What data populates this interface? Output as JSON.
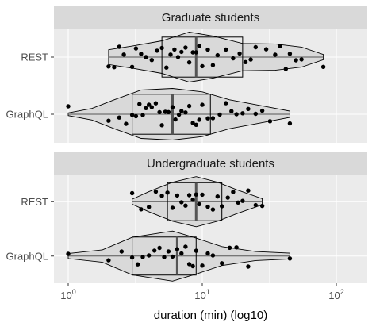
{
  "chart_data": {
    "type": "violin",
    "x_scale": "log10",
    "xlim": [
      1,
      100
    ],
    "xlabel": "duration (min) (log10)",
    "x_ticks": [
      1,
      10,
      100
    ],
    "x_tick_labels": [
      [
        "10",
        "0"
      ],
      [
        "10",
        "1"
      ],
      [
        "10",
        "2"
      ]
    ],
    "categories": [
      "REST",
      "GraphQL"
    ],
    "panels": [
      {
        "title": "Graduate students",
        "groups": [
          {
            "category": "REST",
            "box": {
              "q1": 5.0,
              "median": 9.0,
              "q3": 20.0
            },
            "whisker": [
              2.0,
              80.0
            ],
            "points": [
              2.0,
              2.2,
              2.4,
              2.6,
              3.0,
              3.2,
              3.5,
              3.8,
              4.2,
              4.6,
              5.0,
              5.4,
              5.8,
              6.2,
              6.6,
              7.0,
              7.5,
              8.0,
              8.5,
              9.0,
              9.5,
              10.0,
              11.0,
              12.0,
              13.0,
              15.0,
              17.0,
              19.0,
              21.0,
              23.0,
              25.0,
              30.0,
              35.0,
              38.0,
              42.0,
              45.0,
              50.0,
              55.0,
              80.0
            ],
            "density": [
              [
                2.0,
                0.28
              ],
              [
                3.0,
                0.42
              ],
              [
                5.0,
                0.62
              ],
              [
                8.0,
                0.95
              ],
              [
                12.0,
                0.8
              ],
              [
                20.0,
                0.52
              ],
              [
                35.0,
                0.5
              ],
              [
                55.0,
                0.38
              ],
              [
                80.0,
                0.1
              ]
            ]
          },
          {
            "category": "GraphQL",
            "box": {
              "q1": 3.0,
              "median": 6.0,
              "q3": 11.5
            },
            "whisker": [
              1.0,
              45.0
            ],
            "points": [
              1.0,
              2.0,
              2.4,
              2.7,
              3.0,
              3.2,
              3.4,
              3.6,
              3.8,
              4.0,
              4.2,
              4.5,
              4.8,
              5.0,
              5.3,
              5.6,
              6.0,
              6.3,
              6.7,
              7.0,
              7.5,
              8.0,
              8.5,
              9.0,
              9.5,
              10.0,
              11.0,
              12.0,
              13.5,
              15.0,
              16.5,
              18.0,
              20.0,
              22.0,
              25.0,
              28.0,
              32.0,
              45.0
            ],
            "density": [
              [
                1.0,
                0.05
              ],
              [
                1.5,
                0.22
              ],
              [
                2.2,
                0.55
              ],
              [
                3.5,
                0.92
              ],
              [
                6.0,
                0.98
              ],
              [
                10.0,
                0.85
              ],
              [
                16.0,
                0.55
              ],
              [
                28.0,
                0.32
              ],
              [
                45.0,
                0.12
              ]
            ]
          }
        ]
      },
      {
        "title": "Undergraduate students",
        "groups": [
          {
            "category": "REST",
            "box": {
              "q1": 5.5,
              "median": 9.0,
              "q3": 14.0
            },
            "whisker": [
              3.0,
              28.0
            ],
            "points": [
              3.0,
              3.5,
              4.0,
              4.5,
              5.0,
              5.5,
              6.0,
              6.5,
              7.0,
              7.5,
              8.0,
              8.5,
              9.0,
              9.5,
              10.0,
              11.0,
              12.0,
              13.0,
              14.0,
              15.5,
              17.0,
              18.5,
              20.0,
              22.0,
              25.0,
              28.0
            ],
            "density": [
              [
                3.0,
                0.1
              ],
              [
                4.0,
                0.4
              ],
              [
                6.0,
                0.78
              ],
              [
                9.0,
                1.0
              ],
              [
                13.0,
                0.78
              ],
              [
                18.0,
                0.48
              ],
              [
                28.0,
                0.12
              ]
            ]
          },
          {
            "category": "GraphQL",
            "box": {
              "q1": 3.0,
              "median": 6.5,
              "q3": 9.0
            },
            "whisker": [
              1.0,
              45.0
            ],
            "points": [
              1.0,
              2.0,
              2.5,
              3.0,
              3.3,
              3.6,
              4.0,
              4.4,
              4.8,
              5.2,
              5.6,
              6.0,
              6.5,
              7.0,
              7.5,
              8.0,
              8.5,
              9.0,
              10.0,
              11.0,
              12.0,
              14.0,
              16.0,
              18.0,
              22.0,
              45.0
            ],
            "density": [
              [
                1.0,
                0.1
              ],
              [
                1.8,
                0.25
              ],
              [
                3.0,
                0.75
              ],
              [
                6.0,
                1.0
              ],
              [
                9.0,
                0.72
              ],
              [
                14.0,
                0.38
              ],
              [
                25.0,
                0.18
              ],
              [
                45.0,
                0.12
              ]
            ]
          }
        ]
      }
    ]
  }
}
